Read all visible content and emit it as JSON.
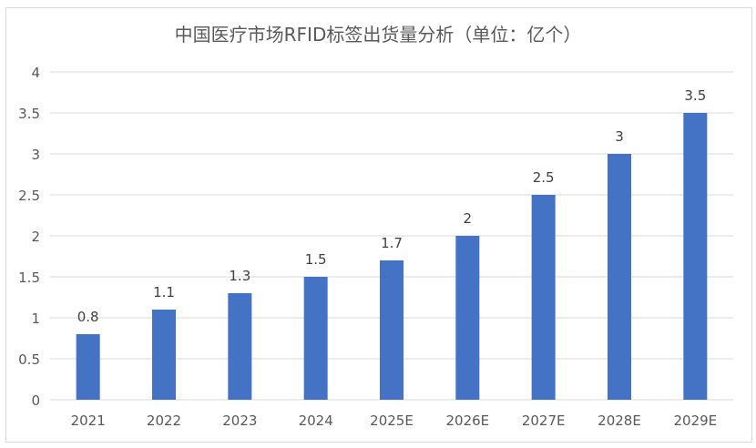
{
  "chart_data": {
    "type": "bar",
    "title": "中国医疗市场RFID标签出货量分析（单位：亿个）",
    "categories": [
      "2021",
      "2022",
      "2023",
      "2024",
      "2025E",
      "2026E",
      "2027E",
      "2028E",
      "2029E"
    ],
    "values": [
      0.8,
      1.1,
      1.3,
      1.5,
      1.7,
      2,
      2.5,
      3,
      3.5
    ],
    "data_labels": [
      "0.8",
      "1.1",
      "1.3",
      "1.5",
      "1.7",
      "2",
      "2.5",
      "3",
      "3.5"
    ],
    "ylim": [
      0,
      4
    ],
    "yticks": [
      "0",
      "0.5",
      "1",
      "1.5",
      "2",
      "2.5",
      "3",
      "3.5",
      "4"
    ],
    "grid": true,
    "legend": "none",
    "bar_color": "#4472c4"
  }
}
